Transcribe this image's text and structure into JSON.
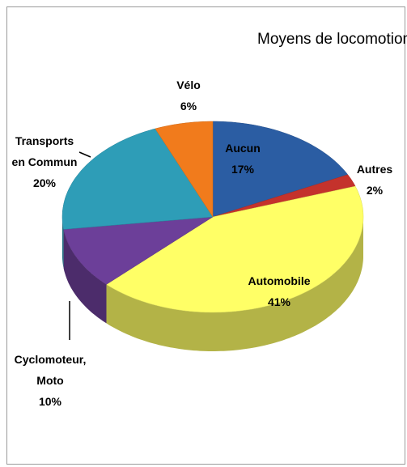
{
  "chart_data": {
    "type": "pie",
    "title": "Moyens de locomotion",
    "categories": [
      "Aucun",
      "Autres",
      "Automobile",
      "Cyclomoteur, Moto",
      "Transports en Commun",
      "Vélo"
    ],
    "values": [
      17,
      2,
      41,
      10,
      20,
      6
    ],
    "value_labels": [
      "17%",
      "2%",
      "41%",
      "10%",
      "20%",
      "6%"
    ],
    "colors": [
      "#2b5da3",
      "#c4322c",
      "#ffff66",
      "#6c3f99",
      "#2e9db7",
      "#f17b1c"
    ]
  }
}
